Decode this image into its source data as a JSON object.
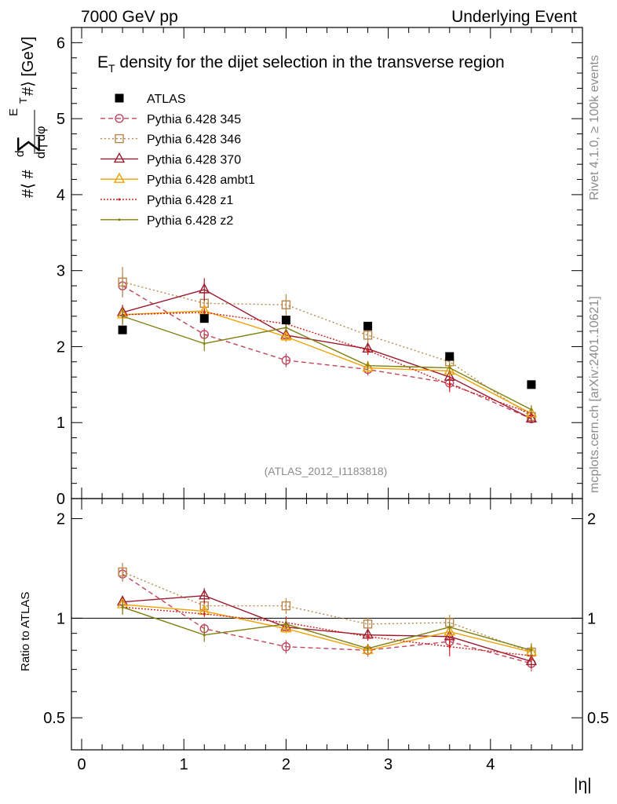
{
  "header": {
    "energy": "7000 GeV pp",
    "process": "Underlying Event",
    "side_top": "Rivet 4.1.0, ≥ 100k events",
    "side_bottom": "mcplots.cern.ch [arXiv:2401.10621]"
  },
  "main_plot": {
    "title_pre": "E",
    "title_sub": "T",
    "title_rest": " density  for the dijet selection in the transverse region",
    "analysis_tag": "(ATLAS_2012_I1183818)",
    "ylabel": "#⟨ # d ∑ E_T #⟩ / dη dφ [GeV]",
    "ylabel_parts": {
      "open": "#⟨ #",
      "frac_num": "d",
      "sum": "∑",
      "e": "E",
      "t": "T",
      "close": "#⟩ [GeV]",
      "frac_den": "dη dφ"
    },
    "y_ticks": [
      "0",
      "1",
      "2",
      "3",
      "4",
      "5",
      "6"
    ]
  },
  "ratio_plot": {
    "ylabel": "Ratio to ATLAS",
    "y_ticks": [
      "0.5",
      "1",
      "2"
    ]
  },
  "x_axis": {
    "label": "|η|",
    "ticks": [
      "0",
      "1",
      "2",
      "3",
      "4"
    ]
  },
  "chart_data": {
    "type": "scatter",
    "title": "E_T density  for the dijet selection in the transverse region",
    "xlabel": "|η|",
    "ylabel": "d∑E_T / dη dφ [GeV]",
    "xlim": [
      -0.1,
      4.9
    ],
    "ylim": [
      0,
      6.2
    ],
    "ratio_ylim": [
      0.4,
      2.3
    ],
    "ratio_ylabel": "Ratio to ATLAS",
    "x": [
      0.4,
      1.2,
      2.0,
      2.8,
      3.6,
      4.4
    ],
    "legend_position": "top-left",
    "data": {
      "name": "ATLAS",
      "color": "#000000",
      "values": [
        2.22,
        2.37,
        2.35,
        2.27,
        1.87,
        1.5
      ]
    },
    "series": [
      {
        "name": "Pythia 6.428 345",
        "color": "#c0455f",
        "dash": "6,4",
        "marker": "circle",
        "values": [
          2.8,
          2.16,
          1.82,
          1.7,
          1.52,
          1.05
        ],
        "errors": [
          0.15,
          0.08,
          0.09,
          0.08,
          0.08,
          0.06
        ],
        "ratio": [
          1.36,
          0.93,
          0.82,
          0.8,
          0.85,
          0.73
        ]
      },
      {
        "name": "Pythia 6.428 346",
        "color": "#b8864b",
        "dash": "2,3",
        "marker": "square",
        "values": [
          2.85,
          2.57,
          2.55,
          2.15,
          1.8,
          1.08
        ],
        "errors": [
          0.2,
          0.1,
          0.14,
          0.1,
          0.1,
          0.06
        ],
        "ratio": [
          1.38,
          1.09,
          1.09,
          0.96,
          0.97,
          0.79
        ]
      },
      {
        "name": "Pythia 6.428 370",
        "color": "#9b1c31",
        "dash": "",
        "marker": "triangle",
        "values": [
          2.45,
          2.75,
          2.15,
          1.97,
          1.6,
          1.05
        ],
        "errors": [
          0.1,
          0.15,
          0.08,
          0.08,
          0.07,
          0.05
        ],
        "ratio": [
          1.12,
          1.17,
          0.94,
          0.89,
          0.88,
          0.74
        ]
      },
      {
        "name": "Pythia 6.428 ambt1",
        "color": "#f0a000",
        "dash": "",
        "marker": "triangle",
        "values": [
          2.42,
          2.47,
          2.13,
          1.72,
          1.68,
          1.12
        ],
        "errors": [
          0.1,
          0.06,
          0.07,
          0.06,
          0.06,
          0.06
        ],
        "ratio": [
          1.1,
          1.05,
          0.93,
          0.8,
          0.91,
          0.79
        ]
      },
      {
        "name": "Pythia 6.428 z1",
        "color": "#d02020",
        "dash": "2,2",
        "marker": "dot",
        "values": [
          2.42,
          2.45,
          2.3,
          1.95,
          1.5,
          1.12
        ],
        "errors": [
          0.12,
          0.05,
          0.1,
          0.05,
          0.1,
          0.05
        ],
        "ratio": [
          1.08,
          1.03,
          0.97,
          0.88,
          0.82,
          0.77
        ]
      },
      {
        "name": "Pythia 6.428 z2",
        "color": "#7f7f10",
        "dash": "",
        "marker": "dot",
        "values": [
          2.4,
          2.04,
          2.25,
          1.75,
          1.72,
          1.17
        ],
        "errors": [
          0.12,
          0.1,
          0.06,
          0.06,
          0.06,
          0.06
        ],
        "ratio": [
          1.08,
          0.89,
          0.96,
          0.81,
          0.94,
          0.8
        ]
      }
    ]
  }
}
